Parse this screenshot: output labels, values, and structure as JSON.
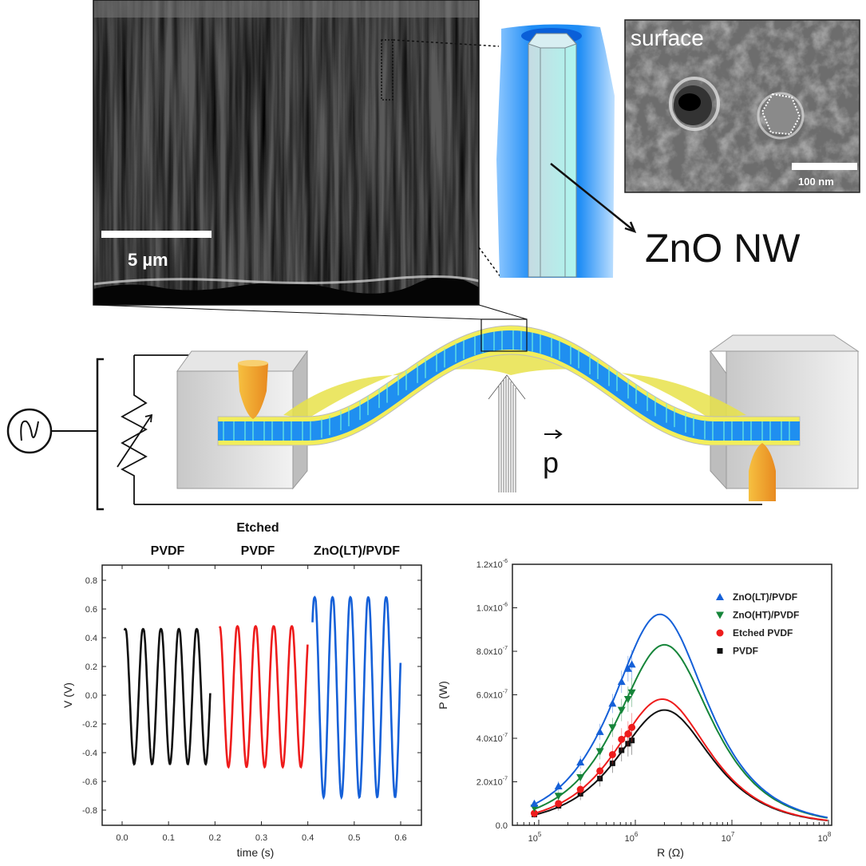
{
  "sem_crosssection": {
    "scale_bar": "5 µm"
  },
  "nanowire_schematic": {
    "label": "ZnO NW"
  },
  "sem_surface": {
    "title": "surface",
    "scale_bar": "100 nm"
  },
  "device_schematic": {
    "force_label": "p"
  },
  "colors": {
    "pvdf": "#111111",
    "etched": "#ee1c1c",
    "zno_lt": "#1560d8",
    "zno_ht": "#16853a",
    "film_yellow": "#f3ee5a",
    "film_blue": "#1f8ff0",
    "electrode": "#f0a030"
  },
  "chart_data": [
    {
      "type": "line",
      "title": "",
      "headers": [
        {
          "lines": [
            "PVDF"
          ]
        },
        {
          "lines": [
            "Etched",
            "PVDF"
          ]
        },
        {
          "lines": [
            "ZnO(LT)/PVDF"
          ]
        }
      ],
      "xlabel": "time (s)",
      "ylabel": "V (V)",
      "xlim": [
        -0.05,
        0.64
      ],
      "ylim": [
        -0.9,
        0.9
      ],
      "xticks": [
        "0.0",
        "0.1",
        "0.2",
        "0.3",
        "0.4",
        "0.5",
        "0.6"
      ],
      "yticks": [
        "-0.8",
        "-0.6",
        "-0.4",
        "-0.2",
        "0.0",
        "0.2",
        "0.4",
        "0.6",
        "0.8"
      ],
      "series": [
        {
          "name": "PVDF",
          "color": "#111111",
          "t_start": 0.005,
          "t_end": 0.19,
          "first_min_t": 0.026,
          "period": 0.0385,
          "amplitude": 0.48
        },
        {
          "name": "Etched PVDF",
          "color": "#ee1c1c",
          "t_start": 0.21,
          "t_end": 0.4,
          "first_min_t": 0.229,
          "period": 0.039,
          "amplitude": 0.5
        },
        {
          "name": "ZnO(LT)/PVDF",
          "color": "#1560d8",
          "t_start": 0.41,
          "t_end": 0.6,
          "first_min_t": 0.434,
          "period": 0.0385,
          "amplitude": 0.71
        }
      ]
    },
    {
      "type": "scatter",
      "title": "",
      "xlabel": "R (Ω)",
      "ylabel": "P (W)",
      "xscale": "log",
      "xlim": [
        100000,
        100000000
      ],
      "ylim": [
        0,
        1.2e-06
      ],
      "xticks": [
        {
          "base": "10",
          "exp": "5"
        },
        {
          "base": "10",
          "exp": "6"
        },
        {
          "base": "10",
          "exp": "7"
        },
        {
          "base": "10",
          "exp": "8"
        }
      ],
      "yticks": [
        {
          "mant": "0.0",
          "exp": ""
        },
        {
          "mant": "2.0x10",
          "exp": "-7"
        },
        {
          "mant": "4.0x10",
          "exp": "-7"
        },
        {
          "mant": "6.0x10",
          "exp": "-7"
        },
        {
          "mant": "8.0x10",
          "exp": "-7"
        },
        {
          "mant": "1.0x10",
          "exp": "-6"
        },
        {
          "mant": "1.2x10",
          "exp": "-6"
        }
      ],
      "legend_position": "top-right",
      "R": [
        90000,
        160000,
        270000,
        430000,
        580000,
        720000,
        840000,
        920000
      ],
      "series": [
        {
          "name": "ZnO(LT)/PVDF",
          "color": "#1560d8",
          "marker": "triangle-up",
          "P": [
            1e-07,
            1.8e-07,
            2.9e-07,
            4.3e-07,
            5.6e-07,
            6.6e-07,
            7.2e-07,
            7.4e-07
          ],
          "fit_peak_R": 1800000,
          "fit_peak_P": 9.7e-07
        },
        {
          "name": "ZnO(HT)/PVDF",
          "color": "#16853a",
          "marker": "triangle-down",
          "P": [
            8e-08,
            1.35e-07,
            2.2e-07,
            3.4e-07,
            4.5e-07,
            5.3e-07,
            5.8e-07,
            6.1e-07
          ],
          "fit_peak_R": 2000000,
          "fit_peak_P": 8.3e-07
        },
        {
          "name": "Etched PVDF",
          "color": "#ee1c1c",
          "marker": "circle",
          "P": [
            5.5e-08,
            1e-07,
            1.65e-07,
            2.5e-07,
            3.25e-07,
            3.95e-07,
            4.2e-07,
            4.5e-07
          ],
          "fit_peak_R": 1900000,
          "fit_peak_P": 5.8e-07
        },
        {
          "name": "PVDF",
          "color": "#111111",
          "marker": "square",
          "P": [
            5e-08,
            9e-08,
            1.45e-07,
            2.15e-07,
            2.85e-07,
            3.45e-07,
            3.75e-07,
            3.9e-07
          ],
          "fit_peak_R": 2000000,
          "fit_peak_P": 5.3e-07
        }
      ]
    }
  ]
}
